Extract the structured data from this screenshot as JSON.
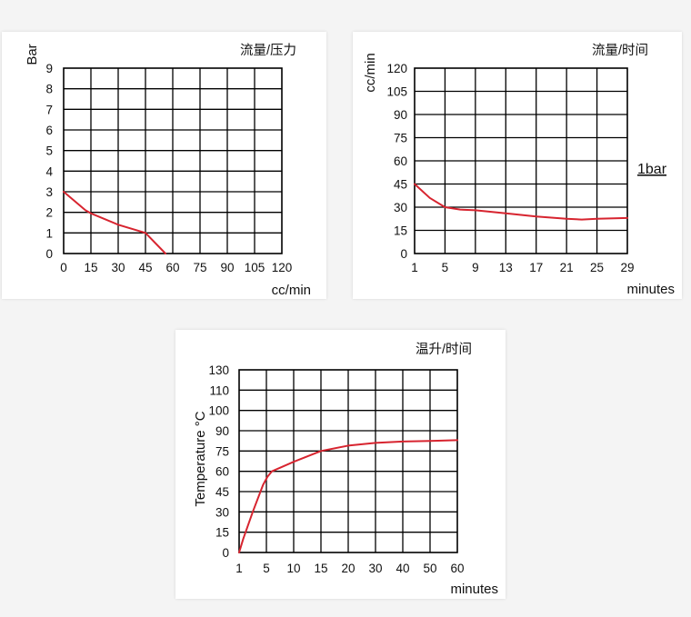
{
  "chart_data": [
    {
      "type": "line",
      "title": "流量/压力",
      "xlabel": "cc/min",
      "ylabel": "Bar",
      "x_ticks": [
        "0",
        "15",
        "30",
        "45",
        "60",
        "75",
        "90",
        "105",
        "120"
      ],
      "y_ticks": [
        "0",
        "1",
        "2",
        "3",
        "4",
        "5",
        "6",
        "7",
        "8",
        "9"
      ],
      "xlim": [
        0,
        120
      ],
      "ylim": [
        0,
        9
      ],
      "grid": true,
      "series": [
        {
          "color": "#d7242f",
          "x": [
            0,
            12,
            15,
            30,
            45,
            56
          ],
          "y": [
            3,
            2.1,
            1.95,
            1.4,
            1.0,
            0
          ]
        }
      ]
    },
    {
      "type": "line",
      "title": "流量/时间",
      "xlabel": "minutes",
      "ylabel": "cc/min",
      "annotation": "1bar",
      "x_ticks": [
        "1",
        "5",
        "9",
        "13",
        "17",
        "21",
        "25",
        "29"
      ],
      "y_ticks": [
        "0",
        "15",
        "30",
        "45",
        "60",
        "75",
        "90",
        "105",
        "120"
      ],
      "xlim": [
        1,
        29
      ],
      "ylim": [
        0,
        120
      ],
      "grid": true,
      "series": [
        {
          "color": "#d7242f",
          "x": [
            1,
            3,
            5,
            7,
            9,
            13,
            17,
            21,
            23,
            25,
            29
          ],
          "y": [
            45,
            36,
            30,
            28.5,
            28,
            26,
            24,
            22.5,
            22,
            22.5,
            23
          ]
        }
      ]
    },
    {
      "type": "line",
      "title": "温升/时间",
      "xlabel": "minutes",
      "ylabel": "Temperature °C",
      "x_ticks": [
        "1",
        "5",
        "10",
        "15",
        "20",
        "30",
        "40",
        "50",
        "60"
      ],
      "y_ticks": [
        "0",
        "15",
        "30",
        "45",
        "60",
        "75",
        "90",
        "100",
        "110",
        "130"
      ],
      "xlim": [
        1,
        60
      ],
      "ylim": [
        0,
        130
      ],
      "grid": true,
      "series": [
        {
          "color": "#d7242f",
          "x": [
            1,
            1.6,
            3,
            4.5,
            5.2,
            6,
            10,
            15,
            20,
            30,
            40,
            50,
            60
          ],
          "y": [
            0,
            10,
            30,
            50,
            56,
            60,
            67,
            75,
            79,
            81,
            82,
            82.5,
            83
          ]
        }
      ]
    }
  ]
}
